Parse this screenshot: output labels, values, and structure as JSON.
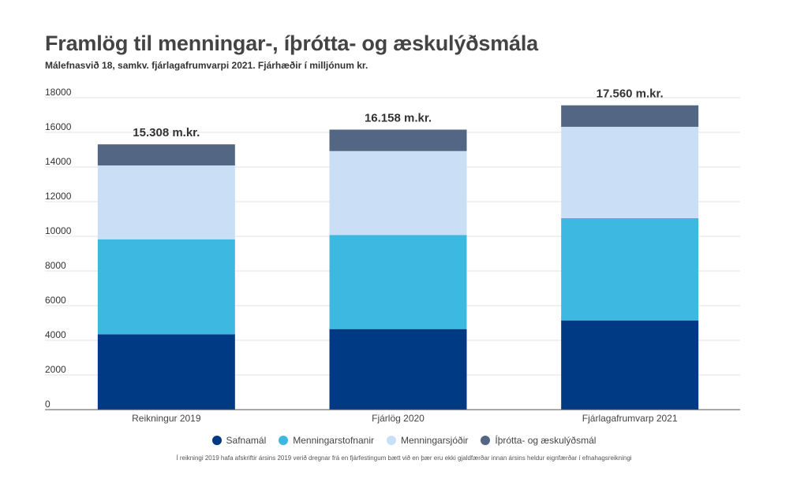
{
  "chart_data": {
    "type": "bar",
    "stacked": true,
    "title": "Framlög til menningar-, íþrótta- og æskulýðsmála",
    "subtitle": "Málefnasvið 18, samkv. fjárlagafrumvarpi 2021. Fjárhæðir í milljónum kr.",
    "categories": [
      "Reikningur 2019",
      "Fjárlög 2020",
      "Fjárlagafrumvarp 2021"
    ],
    "series": [
      {
        "name": "Safnamál",
        "color": "#003a84",
        "values": [
          4350,
          4650,
          5150
        ]
      },
      {
        "name": "Menningarstofnanir",
        "color": "#3db8e0",
        "values": [
          5480,
          5430,
          5900
        ]
      },
      {
        "name": "Menningarsjóðir",
        "color": "#cadff5",
        "values": [
          4260,
          4840,
          5270
        ]
      },
      {
        "name": "Íþrótta- og æskulýðsmál",
        "color": "#536683",
        "values": [
          1218,
          1238,
          1240
        ]
      }
    ],
    "totals": [
      "15.308 m.kr.",
      "16.158 m.kr.",
      "17.560 m.kr."
    ],
    "yticks": [
      0,
      2000,
      4000,
      6000,
      8000,
      10000,
      12000,
      14000,
      16000,
      18000
    ],
    "ylim": [
      0,
      18000
    ],
    "grid": true,
    "legend_position": "bottom",
    "footnote": "Í reikningi 2019 hafa afskriftir ársins 2019 verið dregnar frá en fjárfestingum bætt við en þær eru ekki gjaldfærðar innan ársins heldur eignfærðar í efnahagsreikningi"
  }
}
